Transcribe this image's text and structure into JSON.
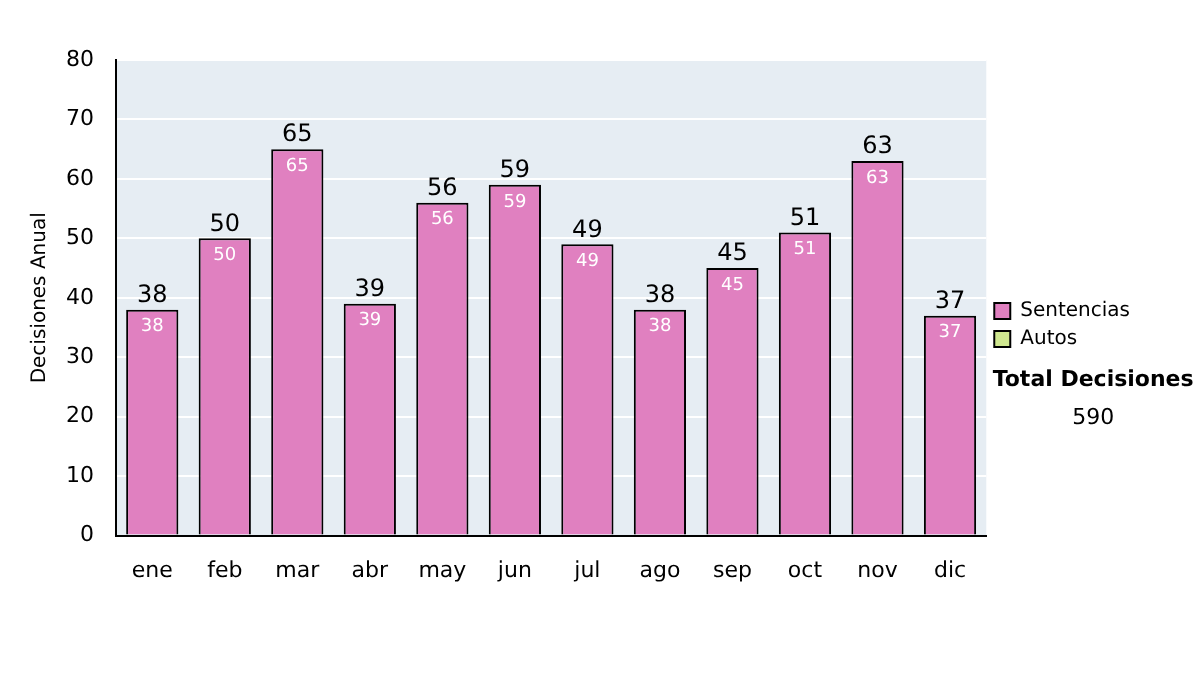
{
  "chart_data": {
    "type": "bar",
    "stacked": true,
    "ylabel": "Decisiones Anual",
    "categories": [
      "ene",
      "feb",
      "mar",
      "abr",
      "may",
      "jun",
      "jul",
      "ago",
      "sep",
      "oct",
      "nov",
      "dic"
    ],
    "series": [
      {
        "name": "Sentencias",
        "color": "#e080c0",
        "values": [
          38,
          50,
          65,
          39,
          56,
          59,
          49,
          38,
          45,
          51,
          63,
          37
        ],
        "value_labels": [
          "38",
          "50",
          "65",
          "39",
          "56",
          "59",
          "49",
          "38",
          "45",
          "51",
          "63",
          "37"
        ]
      },
      {
        "name": "Autos",
        "color": "#d0e890",
        "values": [
          null,
          null,
          null,
          null,
          null,
          null,
          null,
          null,
          null,
          null,
          null,
          null
        ]
      }
    ],
    "totals": [
      "38",
      "50",
      "65",
      "39",
      "56",
      "59",
      "49",
      "38",
      "45",
      "51",
      "63",
      "37"
    ],
    "ylim": [
      0,
      80
    ],
    "yticks": [
      0,
      10,
      20,
      30,
      40,
      50,
      60,
      70,
      80
    ],
    "grid": "y",
    "legend": "right",
    "annotations": [
      "Total Decisiones",
      "590"
    ]
  }
}
